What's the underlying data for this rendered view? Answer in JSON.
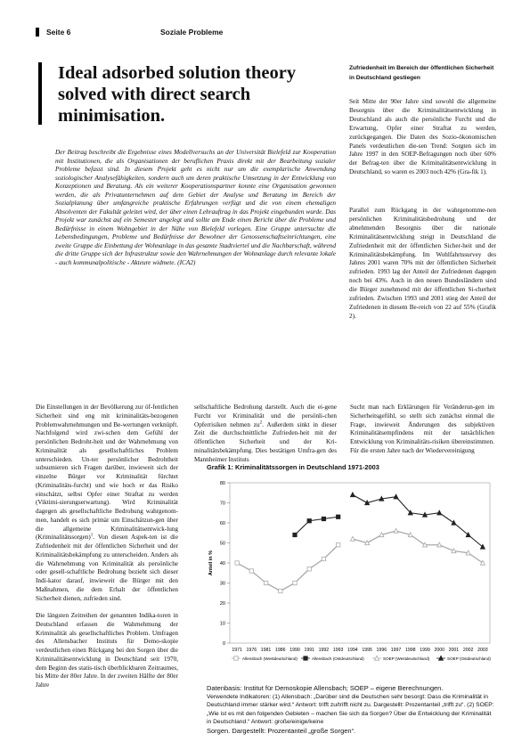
{
  "header": {
    "page_label": "Seite 6",
    "section": "Soziale Probleme"
  },
  "title": "Ideal adsorbed solution theory solved with direct search minimisation.",
  "abstract": "Der Beitrag beschreibt die Ergebnisse eines Modellversuchs an der Universität Bielefeld zur Kooperation mit Institutionen, die als Organisationen der beruflichen Praxis direkt mit der Bearbeitung sozialer Probleme befasst sind. In diesem Projekt geht es nicht nur um die exemplarische Anwendung soziologischer Analysefähigkeiten, sondern auch um deren praktische Umsetzung in der Entwicklung von Konzeptionen und Beratung. Als ein weiterer Kooperationspartner konnte eine Organisation gewonnen werden, die als Privatunternehmen auf dem Gebiet der Analyse und Beratung im Bereich der Sozialplanung über umfangreiche praktische Erfahrungen verfügt und die von einem ehemaligen Absolventen der Fakultät geleitet wird, der über einen Lehrauftrag in das Projekt eingebunden wurde. Das Projekt war zunächst auf ein Semester angelegt und sollte am Ende einen Bericht über die Probleme und Bedürfnisse in einem Wohngebiet in der Nähe von Bielefeld vorlegen. Eine Gruppe untersuchte die Lebensbedingungen, Probleme und Bedürfnisse der Bewohner der Genossenschaftseinrichtungen, eine zweite Gruppe die Einbettung der Wohnanlage in das gesamte Stadtviertel und die Nachbarschaft, während die dritte Gruppe sich der Infrastruktur sowie den Wahrnehmungen der Wohnanlage durch relevante lokale - auch kommunalpolitische - Akteure widmete. (ICA2)",
  "sidebar": {
    "heading": "Zufriedenheit im Bereich der öffentlichen Sicherheit in Deutschland gestiegen",
    "p1": "Seit Mitte der 90er Jahre sind sowohl die allgemeine Besorgnis über die Kriminalitätsentwicklung in Deutschland als auch die persönliche Furcht und die Erwartung, Opfer einer Straftat zu werden, zurückgegangen. Die Daten des Sozio-ökonomischen Panels verdeutlichen die-sen Trend: Sorgten sich im Jahre 1997 in den SOEP-Befragungen noch über 60% der Befrag-ten über die Kriminalitätsentwicklung in Deutschland, so waren es 2003 noch 42% (Gra-fik 1).",
    "p2": "Parallel zum Rückgang in der wahrgenomme-nen persönlichen Kriminalitätsbedrohung und der abnehmenden Besorgnis über die nationale Kriminalitätsentwicklung steigt in Deutschland die Zufriedenheit mit der öffentlichen Sicher-heit und der Kriminalitätsbekämpfung. Im Wohlfahrtssurvey des Jahres 2001 waren 70% mit der öffentlichen Sicherheit zufrieden. 1993 lag der Anteil der Zufriedenen dagegen noch bei 43%. Auch in den neuen Bundesländern sind die Bürger zunehmend mit der öffentlichen Si-cherheit zufrieden. Zwischen 1993 und 2001 stieg der Anteil der Zufriedenen in diesem Be-reich von 22 auf 55% (Grafik 2)."
  },
  "body": {
    "col1_p1_a": "Die Einstellungen in der Bevölkerung zur öf-fentlichen Sicherheit sind eng mit kriminalitäts-bezogenen Problemwahrnehmungen und Be-wertungen verknüpft. Nachfolgend wird zwi-schen dem Gefühl der persönlichen Bedroht-heit und der Wahrnehmung von Kriminalität als gesellschaftliches Problem unterschieden. Un-ter persönlicher Bedrohtheit subsumieren sich Fragen darüber, inwieweit sich der einzelne Bürger vor Kriminalität fürchtet (Kriminalitäts-furcht) und wie hoch er das Risiko einschätzt, selbst Opfer einer Straftat zu werden (Viktimi-sierungserwartung). Wird Kriminalität dagegen als gesellschaftliche Bedrohung wahrgenom-men, handelt es sich primär um Einschätzun-gen über die allgemeine Kriminalitätsentwick-lung (Kriminalitätssorgen)",
    "col1_p1_sup": "1",
    "col1_p1_b": ". Von diesen Aspek-ten ist die Zufriedenheit mit der öffentlichen Sicherheit und der Kriminalitätsbekämpfung zu unterscheiden. Anders als die Wahrnehmung von Kriminalität als persönliche oder gesell-schaftliche Bedrohung bezieht sich dieser Indi-kator darauf, inwieweit die Bürger mit den Maßnahmen, die dem Erhalt der öffentlichen Sicherheit dienen, zufrieden sind.",
    "col1_p2": "Die längsten Zeitreihen der genannten Indika-toren in Deutschland erfassen die Wahrnehmung der Kriminalität als gesellschaftliches Problem. Umfragen des Allensbacher Instituts für Demo-skopie verdeutlichen einen Rückgang bei den Sorgen über die Kriminalitätsentwicklung in Deutschland seit 1970, dem Beginn des statis-tisch überblickbaren Zeitraumes, bis Mitte der 80er Jahre. In der zweiten Hälfte der 80er Jahre",
    "col2_a": "sellschaftliche Bedrohung darstellt. Auch die ei-gene Furcht vor Kriminalität und die persönli-chen Opferrisiken nehmen zu",
    "col2_sup": "2",
    "col2_b": ". Außerdem sinkt in dieser Zeit die durchschnittliche Zufrieden-heit mit der öffentlichen Sicherheit und der Kri-minalitätsbekämpfung. Dies bestätigen Umfra-gen des Mannheimer Instituts",
    "col3": "Sucht man nach Erklärungen für Veränderun-gen im Sicherheitsgefühl, so stellt sich zunächst einmal die Frage, inwieweit Änderungen des subjektiven Kriminalitätsempfindens mit der tatsächlichen Entwicklung von Kriminalitäts-risiken übereinstimmen. Für die ersten Jahre nach der Wiedervereinigung"
  },
  "chart_data": {
    "type": "line",
    "title": "Grafik 1: Kriminalitätssorgen in Deutschland 1971-2003",
    "ylabel": "Anteil in %",
    "xlabel": "",
    "ylim": [
      0,
      80
    ],
    "yticks": [
      0,
      10,
      20,
      30,
      40,
      50,
      60,
      70,
      80
    ],
    "x_labels": [
      "1971",
      "1976",
      "1981",
      "1986",
      "1990",
      "1991",
      "1992",
      "1993",
      "1994",
      "1995",
      "1996",
      "1997",
      "1998",
      "1999",
      "2000",
      "2001",
      "2002",
      "2003"
    ],
    "grid": false,
    "legend_placement": "bottom",
    "series": [
      {
        "name": "Allensbach (Westdeutschland)",
        "marker": "square-open",
        "color": "#aaaaaa",
        "x": [
          1971,
          1976,
          1981,
          1986,
          1990,
          1991,
          1992,
          1993
        ],
        "y": [
          40,
          36,
          30,
          26,
          30,
          37,
          42,
          49
        ]
      },
      {
        "name": "Allensbach (Ostdeutschland)",
        "marker": "square",
        "color": "#222222",
        "x": [
          1990,
          1991,
          1992,
          1993
        ],
        "y": [
          54,
          61,
          62,
          63
        ]
      },
      {
        "name": "SOEP (Westdeutschland)",
        "marker": "triangle-open",
        "color": "#aaaaaa",
        "x": [
          1994,
          1995,
          1996,
          1997,
          1998,
          1999,
          2000,
          2001,
          2002,
          2003
        ],
        "y": [
          52,
          50,
          54,
          56,
          54,
          49,
          49,
          46,
          45,
          40
        ]
      },
      {
        "name": "SOEP (Ostdeutschland)",
        "marker": "triangle",
        "color": "#222222",
        "x": [
          1994,
          1995,
          1996,
          1997,
          1998,
          1999,
          2000,
          2001,
          2002,
          2003
        ],
        "y": [
          74,
          70,
          72,
          73,
          65,
          64,
          65,
          60,
          54,
          48
        ]
      }
    ]
  },
  "caption": {
    "source": "Datenbasis: Institut für Demoskopie Allensbach; SOEP – eigene Berechnungen.",
    "indicators": "Verwendete Indikatoren: (1) Allensbach: „Darüber sind die Deutschen sehr besorgt: Dass die Kriminalität in Deutschland immer stärker wird.“ Antwort: trifft zu/trifft nicht zu. Dargestellt: Prozentanteil „trifft zu“. (2) SOEP: „Wie ist es mit den folgenden Gebieten – machen Sie sich da Sorgen? Über die Entwicklung der Kriminalität in Deutschland.“ Antwort: große/einige/keine",
    "end": "Sorgen. Dargestellt: Prozentanteil „große Sorgen“."
  }
}
